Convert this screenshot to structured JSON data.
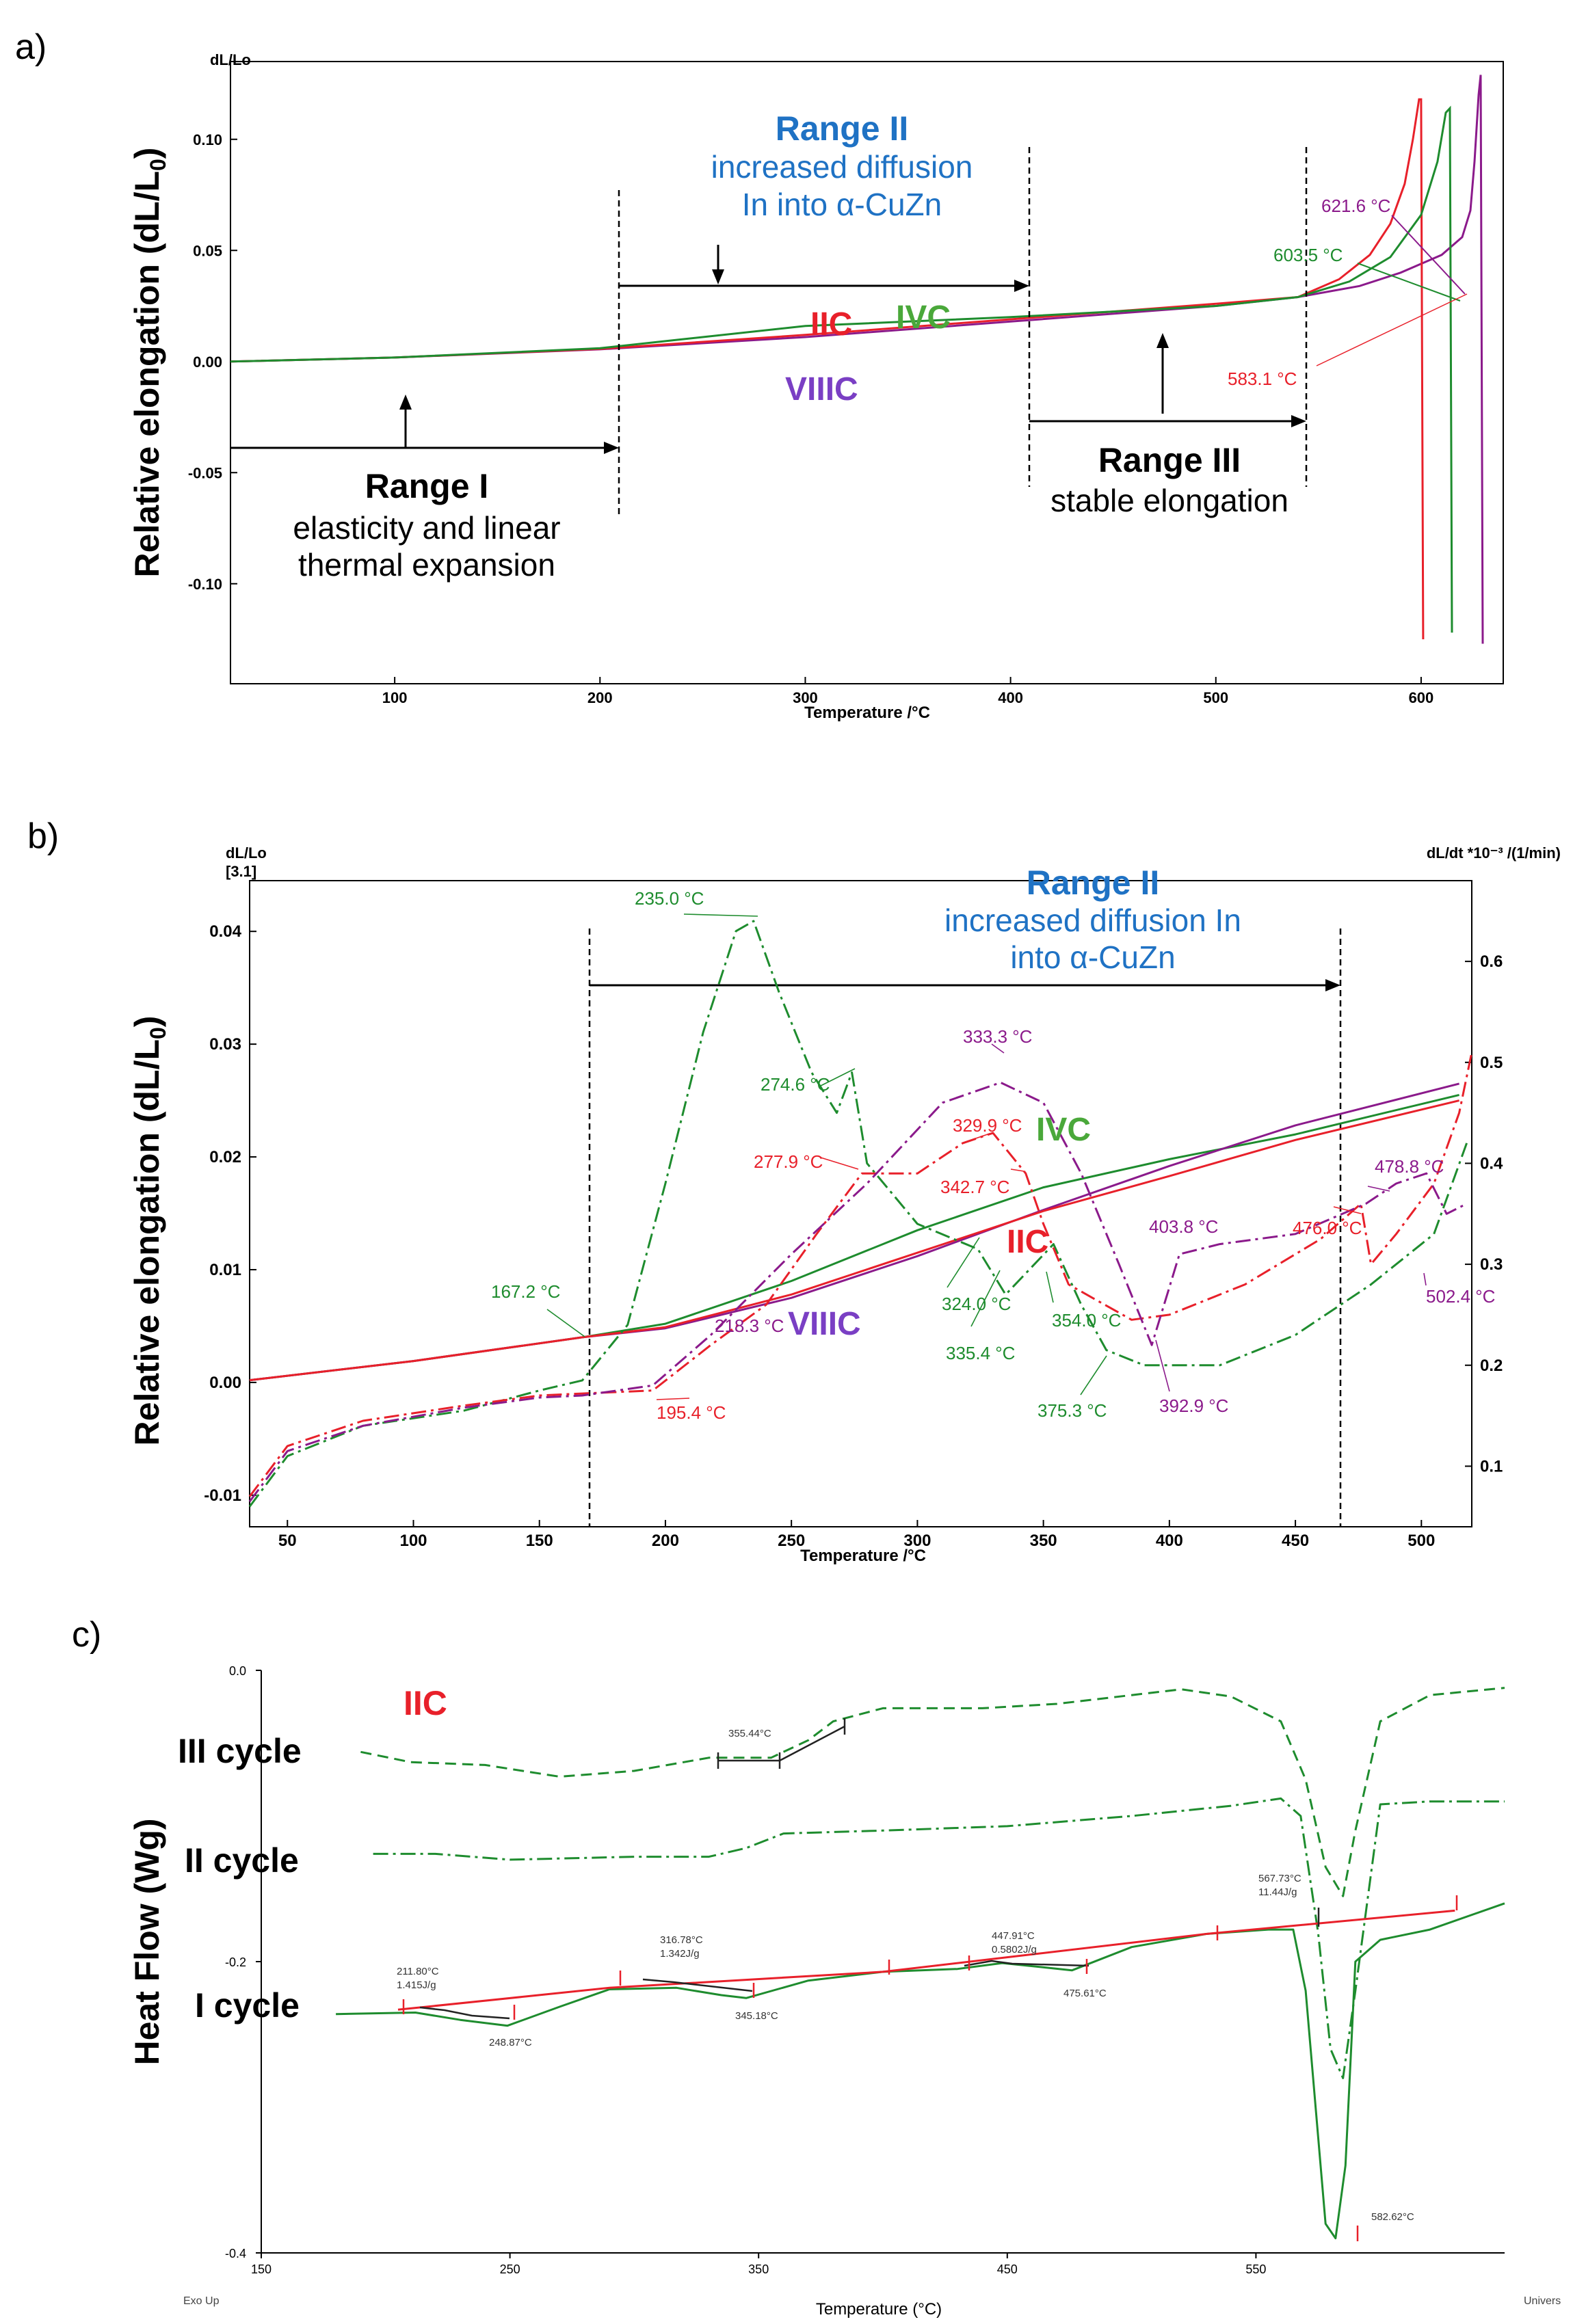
{
  "figure": {
    "panels": [
      "a)",
      "b)",
      "c)"
    ]
  },
  "chart_data": [
    {
      "id": "a",
      "type": "line",
      "panel_label": "a)",
      "title": "",
      "xlabel": "Temperature /°C",
      "ylabel": "Relative elongation (dL/L0)",
      "ylabel_base": "Relative elongation (dL/L",
      "ylabel_sub": "0",
      "ylabel_end": ")",
      "y_unit_label": "dL/Lo",
      "xlim": [
        20,
        640
      ],
      "ylim": [
        -0.145,
        0.135
      ],
      "x_ticks": [
        100,
        200,
        300,
        400,
        500,
        600
      ],
      "y_ticks": [
        -0.1,
        -0.05,
        0.0,
        0.05,
        0.1
      ],
      "y_tick_labels": [
        "-0.10",
        "-0.05",
        "0.00",
        "0.05",
        "0.10"
      ],
      "series": [
        {
          "name": "VIIIC",
          "color": "#8b1a8b",
          "x": [
            20,
            100,
            200,
            300,
            400,
            500,
            540,
            570,
            590,
            610,
            620,
            624,
            626,
            628,
            629,
            630
          ],
          "y": [
            0,
            0.0018,
            0.0055,
            0.011,
            0.018,
            0.025,
            0.029,
            0.034,
            0.04,
            0.048,
            0.056,
            0.068,
            0.09,
            0.12,
            0.129,
            -0.127
          ]
        },
        {
          "name": "IIC",
          "color": "#e8202a",
          "x": [
            20,
            100,
            200,
            300,
            400,
            500,
            540,
            560,
            575,
            585,
            592,
            596,
            599,
            600,
            601
          ],
          "y": [
            0,
            0.0018,
            0.0057,
            0.012,
            0.019,
            0.026,
            0.029,
            0.037,
            0.048,
            0.062,
            0.08,
            0.1,
            0.118,
            0.118,
            -0.125
          ]
        },
        {
          "name": "IVC",
          "color": "#1e8c2e",
          "x": [
            20,
            100,
            200,
            230,
            300,
            400,
            500,
            540,
            565,
            585,
            600,
            608,
            612,
            614,
            615
          ],
          "y": [
            0,
            0.0018,
            0.006,
            0.009,
            0.016,
            0.02,
            0.025,
            0.029,
            0.036,
            0.047,
            0.066,
            0.09,
            0.112,
            0.114,
            -0.122
          ]
        }
      ],
      "annotations": [
        {
          "text": "621.6 °C",
          "color": "#8b1a8b"
        },
        {
          "text": "603.5 °C",
          "color": "#1e8c2e"
        },
        {
          "text": "583.1 °C",
          "color": "#e8202a"
        }
      ],
      "series_labels": [
        {
          "text": "IIC",
          "color": "#e8202a"
        },
        {
          "text": "IVC",
          "color": "#4aa83a"
        },
        {
          "text": "VIIIC",
          "color": "#7a3fc4"
        }
      ],
      "ranges": {
        "range1_title": "Range I",
        "range1_line1": "elasticity and linear",
        "range1_line2": "thermal expansion",
        "range2_title": "Range II",
        "range2_line1": "increased diffusion",
        "range2_line2": "In into α-CuZn",
        "range3_title": "Range III",
        "range3_line1": "stable elongation"
      }
    },
    {
      "id": "b",
      "type": "line",
      "panel_label": "b)",
      "xlabel": "Temperature /°C",
      "ylabel_base": "Relative elongation (dL/L",
      "ylabel_sub": "0",
      "ylabel_end": ")",
      "y_unit_label": "dL/Lo",
      "y_unit_label2": "[3.1]",
      "y2_unit_label": "dL/dt *10⁻³ /(1/min)",
      "xlim": [
        35,
        520
      ],
      "ylim": [
        -0.0128,
        0.0445
      ],
      "y2lim": [
        0.04,
        0.68
      ],
      "x_ticks": [
        50,
        100,
        150,
        200,
        250,
        300,
        350,
        400,
        450,
        500
      ],
      "y_ticks": [
        -0.01,
        0.0,
        0.01,
        0.02,
        0.03,
        0.04
      ],
      "y_tick_labels": [
        "-0.01",
        "0.00",
        "0.01",
        "0.02",
        "0.03",
        "0.04"
      ],
      "y2_ticks": [
        0.1,
        0.2,
        0.3,
        0.4,
        0.5,
        0.6
      ],
      "y2_tick_labels": [
        "0.1",
        "0.2",
        "0.3",
        "0.4",
        "0.5",
        "0.6"
      ],
      "series": [
        {
          "name": "IVC elongation",
          "style": "solid",
          "color": "#1e8c2e",
          "axis": "left",
          "x": [
            35,
            100,
            167,
            200,
            250,
            300,
            350,
            400,
            450,
            515
          ],
          "y": [
            0.0002,
            0.0019,
            0.004,
            0.0052,
            0.009,
            0.0135,
            0.0173,
            0.0198,
            0.022,
            0.0255
          ]
        },
        {
          "name": "VIIIC elongation",
          "style": "solid",
          "color": "#8b1a8b",
          "axis": "left",
          "x": [
            35,
            100,
            167,
            200,
            250,
            300,
            350,
            400,
            450,
            515
          ],
          "y": [
            0.0002,
            0.0019,
            0.004,
            0.0048,
            0.0075,
            0.0112,
            0.0153,
            0.0192,
            0.0228,
            0.0265
          ]
        },
        {
          "name": "IIC elongation",
          "style": "solid",
          "color": "#e8202a",
          "axis": "left",
          "x": [
            35,
            100,
            167,
            200,
            250,
            300,
            350,
            400,
            450,
            515
          ],
          "y": [
            0.0002,
            0.0019,
            0.004,
            0.0049,
            0.0078,
            0.0115,
            0.0152,
            0.0183,
            0.0215,
            0.025
          ]
        },
        {
          "name": "IVC dL/dt",
          "style": "dashdot",
          "color": "#1e8c2e",
          "axis": "right",
          "x": [
            35,
            50,
            80,
            120,
            150,
            167,
            185,
            200,
            215,
            228,
            235,
            245,
            258,
            268,
            274,
            280,
            300,
            324,
            335,
            354,
            365,
            375,
            390,
            420,
            450,
            480,
            505,
            518
          ],
          "y": [
            0.06,
            0.11,
            0.14,
            0.155,
            0.175,
            0.185,
            0.24,
            0.38,
            0.53,
            0.63,
            0.64,
            0.57,
            0.49,
            0.45,
            0.49,
            0.4,
            0.34,
            0.315,
            0.27,
            0.32,
            0.26,
            0.215,
            0.2,
            0.2,
            0.23,
            0.28,
            0.33,
            0.42
          ]
        },
        {
          "name": "IIC dL/dt",
          "style": "dashdot",
          "color": "#e8202a",
          "axis": "right",
          "x": [
            35,
            50,
            80,
            120,
            150,
            167,
            195,
            218,
            240,
            260,
            278,
            300,
            318,
            330,
            343,
            350,
            360,
            385,
            400,
            430,
            460,
            476,
            480,
            490,
            505,
            515,
            520
          ],
          "y": [
            0.07,
            0.12,
            0.145,
            0.16,
            0.17,
            0.172,
            0.175,
            0.22,
            0.26,
            0.33,
            0.39,
            0.39,
            0.42,
            0.43,
            0.39,
            0.34,
            0.28,
            0.245,
            0.25,
            0.28,
            0.325,
            0.36,
            0.3,
            0.33,
            0.38,
            0.45,
            0.51
          ]
        },
        {
          "name": "VIIIC dL/dt",
          "style": "dashdot",
          "color": "#8b1a8b",
          "axis": "right",
          "x": [
            35,
            50,
            80,
            120,
            150,
            167,
            195,
            218,
            250,
            280,
            310,
            333,
            350,
            365,
            380,
            393,
            404,
            420,
            450,
            478,
            490,
            502,
            510,
            518
          ],
          "y": [
            0.065,
            0.115,
            0.14,
            0.158,
            0.168,
            0.17,
            0.18,
            0.23,
            0.31,
            0.38,
            0.46,
            0.48,
            0.46,
            0.39,
            0.3,
            0.22,
            0.31,
            0.32,
            0.33,
            0.36,
            0.38,
            0.39,
            0.35,
            0.36
          ]
        }
      ],
      "annotations": [
        {
          "text": "235.0 °C",
          "color": "#1e8c2e"
        },
        {
          "text": "274.6 °C",
          "color": "#1e8c2e"
        },
        {
          "text": "167.2 °C",
          "color": "#1e8c2e"
        },
        {
          "text": "324.0 °C",
          "color": "#1e8c2e"
        },
        {
          "text": "335.4 °C",
          "color": "#1e8c2e"
        },
        {
          "text": "354.0 °C",
          "color": "#1e8c2e"
        },
        {
          "text": "375.3 °C",
          "color": "#1e8c2e"
        },
        {
          "text": "277.9 °C",
          "color": "#e8202a"
        },
        {
          "text": "329.9 °C",
          "color": "#e8202a"
        },
        {
          "text": "342.7 °C",
          "color": "#e8202a"
        },
        {
          "text": "195.4 °C",
          "color": "#e8202a"
        },
        {
          "text": "476.0 °C",
          "color": "#e8202a"
        },
        {
          "text": "333.3 °C",
          "color": "#8b1a8b"
        },
        {
          "text": "403.8 °C",
          "color": "#8b1a8b"
        },
        {
          "text": "392.9 °C",
          "color": "#8b1a8b"
        },
        {
          "text": "478.8 °C",
          "color": "#8b1a8b"
        },
        {
          "text": "502.4 °C",
          "color": "#8b1a8b"
        },
        {
          "text": "218.3 °C",
          "color": "#8b1a8b"
        }
      ],
      "series_labels": [
        {
          "text": "IVC",
          "color": "#4aa83a"
        },
        {
          "text": "IIC",
          "color": "#e8202a"
        },
        {
          "text": "VIIIC",
          "color": "#7a3fc4"
        }
      ],
      "ranges": {
        "range2_title": "Range II",
        "range2_line1": "increased diffusion In",
        "range2_line2": "into α-CuZn"
      }
    },
    {
      "id": "c",
      "type": "line",
      "panel_label": "c)",
      "title": "IIC",
      "xlabel": "Temperature (°C)",
      "ylabel": "Heat Flow (Wg)",
      "xlim": [
        150,
        650
      ],
      "ylim": [
        -0.4,
        0.0
      ],
      "x_ticks": [
        150,
        250,
        350,
        450,
        550
      ],
      "y_ticks": [
        0.0,
        -0.2,
        -0.4
      ],
      "y_tick_labels": [
        "0.0",
        "-0.2",
        "-0.4"
      ],
      "corner_left": "Exo Up",
      "corner_right": "Univers",
      "cycle_labels": [
        "III cycle",
        "II cycle",
        "I cycle"
      ],
      "series": [
        {
          "name": "III cycle",
          "style": "dashed",
          "color": "#1e8c2e",
          "x": [
            190,
            210,
            240,
            270,
            300,
            330,
            355,
            370,
            380,
            400,
            440,
            470,
            500,
            520,
            540,
            560,
            570,
            578,
            585,
            590,
            600,
            620,
            650
          ],
          "y": [
            -0.056,
            -0.063,
            -0.065,
            -0.073,
            -0.069,
            -0.06,
            -0.06,
            -0.048,
            -0.035,
            -0.026,
            -0.026,
            -0.023,
            -0.017,
            -0.013,
            -0.018,
            -0.035,
            -0.075,
            -0.135,
            -0.155,
            -0.11,
            -0.035,
            -0.017,
            -0.012
          ]
        },
        {
          "name": "II cycle",
          "style": "dashdot",
          "color": "#1e8c2e",
          "x": [
            195,
            220,
            250,
            300,
            330,
            345,
            360,
            400,
            450,
            500,
            540,
            560,
            568,
            575,
            580,
            585,
            590,
            600,
            620,
            650
          ],
          "y": [
            -0.126,
            -0.126,
            -0.13,
            -0.128,
            -0.128,
            -0.122,
            -0.112,
            -0.11,
            -0.107,
            -0.1,
            -0.093,
            -0.088,
            -0.1,
            -0.18,
            -0.26,
            -0.28,
            -0.22,
            -0.092,
            -0.09,
            -0.09
          ]
        },
        {
          "name": "I cycle",
          "style": "solid",
          "color": "#1e8c2e",
          "x": [
            180,
            212,
            230,
            249,
            270,
            290,
            317,
            335,
            345,
            370,
            400,
            430,
            448,
            465,
            476,
            500,
            530,
            555,
            565,
            570,
            575,
            578,
            582,
            586,
            590,
            600,
            620,
            650
          ],
          "y": [
            -0.236,
            -0.235,
            -0.24,
            -0.244,
            -0.231,
            -0.219,
            -0.218,
            -0.223,
            -0.225,
            -0.213,
            -0.207,
            -0.205,
            -0.201,
            -0.204,
            -0.206,
            -0.19,
            -0.181,
            -0.178,
            -0.178,
            -0.22,
            -0.32,
            -0.38,
            -0.39,
            -0.34,
            -0.2,
            -0.185,
            -0.178,
            -0.16
          ]
        },
        {
          "name": "I cycle baseline",
          "style": "solid",
          "color": "#e8202a",
          "x": [
            205,
            290,
            400,
            530,
            630
          ],
          "y": [
            -0.233,
            -0.218,
            -0.207,
            -0.181,
            -0.165
          ]
        }
      ],
      "annotations": [
        {
          "text": "355.44°C"
        },
        {
          "text": "211.80°C"
        },
        {
          "text": "1.415J/g"
        },
        {
          "text": "248.87°C"
        },
        {
          "text": "316.78°C"
        },
        {
          "text": "1.342J/g"
        },
        {
          "text": "345.18°C"
        },
        {
          "text": "447.91°C"
        },
        {
          "text": "0.5802J/g"
        },
        {
          "text": "475.61°C"
        },
        {
          "text": "567.73°C"
        },
        {
          "text": "11.44J/g"
        },
        {
          "text": "582.62°C"
        }
      ]
    }
  ]
}
